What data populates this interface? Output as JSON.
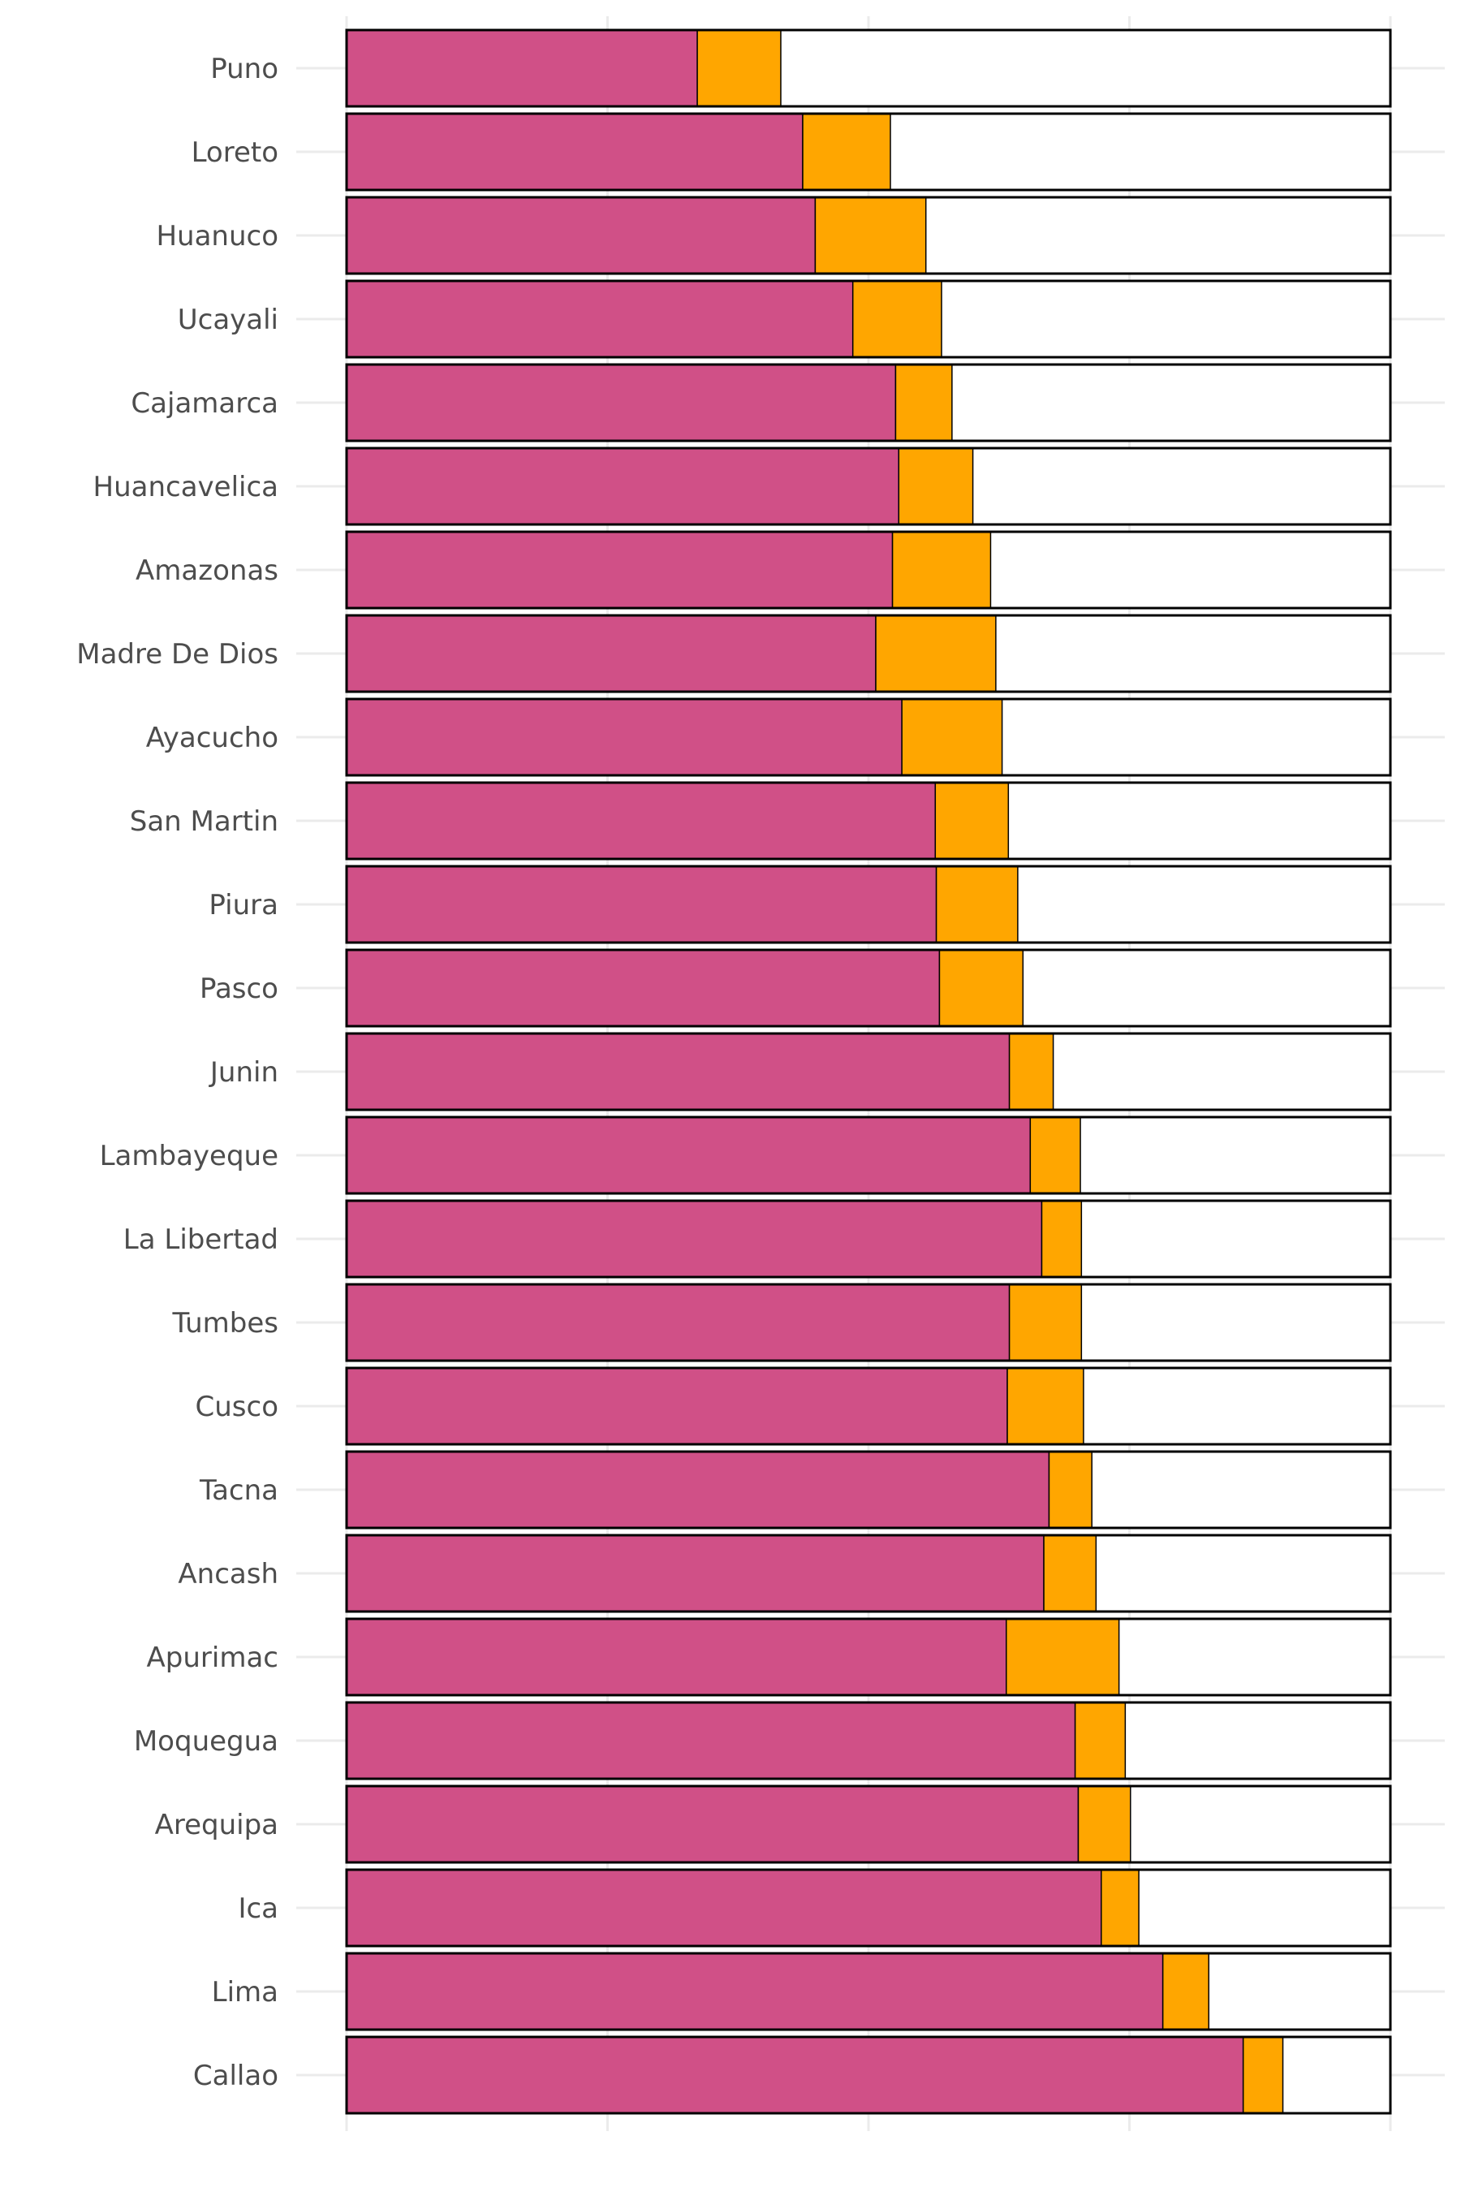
{
  "chart_data": {
    "type": "bar",
    "orientation": "horizontal",
    "stacked": true,
    "title": "",
    "xlabel": "",
    "ylabel": "",
    "xlim": [
      0,
      1
    ],
    "x_tick_labels_shown": false,
    "grid": true,
    "legend": "none",
    "colors": {
      "segment_1": "#d05087",
      "segment_2": "#ffa600",
      "remainder": "#ffffff",
      "outline": "#000000",
      "label_text": "#4d4d4d",
      "grid": "#ebebeb"
    },
    "categories": [
      "Puno",
      "Loreto",
      "Huanuco",
      "Ucayali",
      "Cajamarca",
      "Huancavelica",
      "Amazonas",
      "Madre De Dios",
      "Ayacucho",
      "San Martin",
      "Piura",
      "Pasco",
      "Junin",
      "Lambayeque",
      "La Libertad",
      "Tumbes",
      "Cusco",
      "Tacna",
      "Ancash",
      "Apurimac",
      "Moquegua",
      "Arequipa",
      "Ica",
      "Lima",
      "Callao"
    ],
    "series": [
      {
        "values": [
          0.336,
          0.437,
          0.449,
          0.485,
          0.526,
          0.529,
          0.523,
          0.507,
          0.532,
          0.564,
          0.565,
          0.568,
          0.635,
          0.655,
          0.666,
          0.635,
          0.633,
          0.673,
          0.668,
          0.632,
          0.698,
          0.701,
          0.723,
          0.782,
          0.859
        ]
      },
      {
        "values": [
          0.08,
          0.084,
          0.106,
          0.085,
          0.054,
          0.071,
          0.094,
          0.115,
          0.096,
          0.07,
          0.078,
          0.08,
          0.042,
          0.048,
          0.038,
          0.069,
          0.073,
          0.041,
          0.05,
          0.108,
          0.048,
          0.05,
          0.036,
          0.044,
          0.038
        ]
      }
    ]
  }
}
